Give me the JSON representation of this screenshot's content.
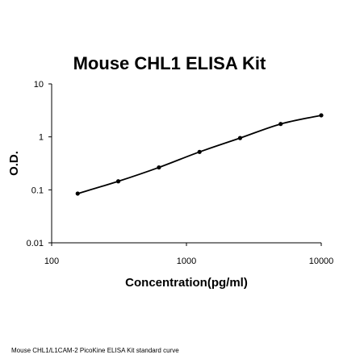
{
  "chart_data": {
    "type": "line",
    "title": "Mouse CHL1 ELISA Kit",
    "xlabel": "Concentration(pg/ml)",
    "ylabel": "O.D.",
    "xscale": "log",
    "yscale": "log",
    "xlim": [
      100,
      10000
    ],
    "ylim": [
      0.01,
      10
    ],
    "x_ticks": [
      "100",
      "1000",
      "10000"
    ],
    "y_ticks": [
      "10",
      "1",
      "0.1",
      "0.01"
    ],
    "grid": false,
    "legend": "none",
    "series": [
      {
        "x": [
          156,
          312,
          625,
          1250,
          2500,
          5000,
          10000
        ],
        "y": [
          0.085,
          0.145,
          0.265,
          0.52,
          0.95,
          1.75,
          2.55
        ]
      }
    ],
    "marker_color": "#000000",
    "line_color": "#000000"
  },
  "caption": "Mouse CHL1/L1CAM-2 PicoKine ELISA Kit standard curve"
}
